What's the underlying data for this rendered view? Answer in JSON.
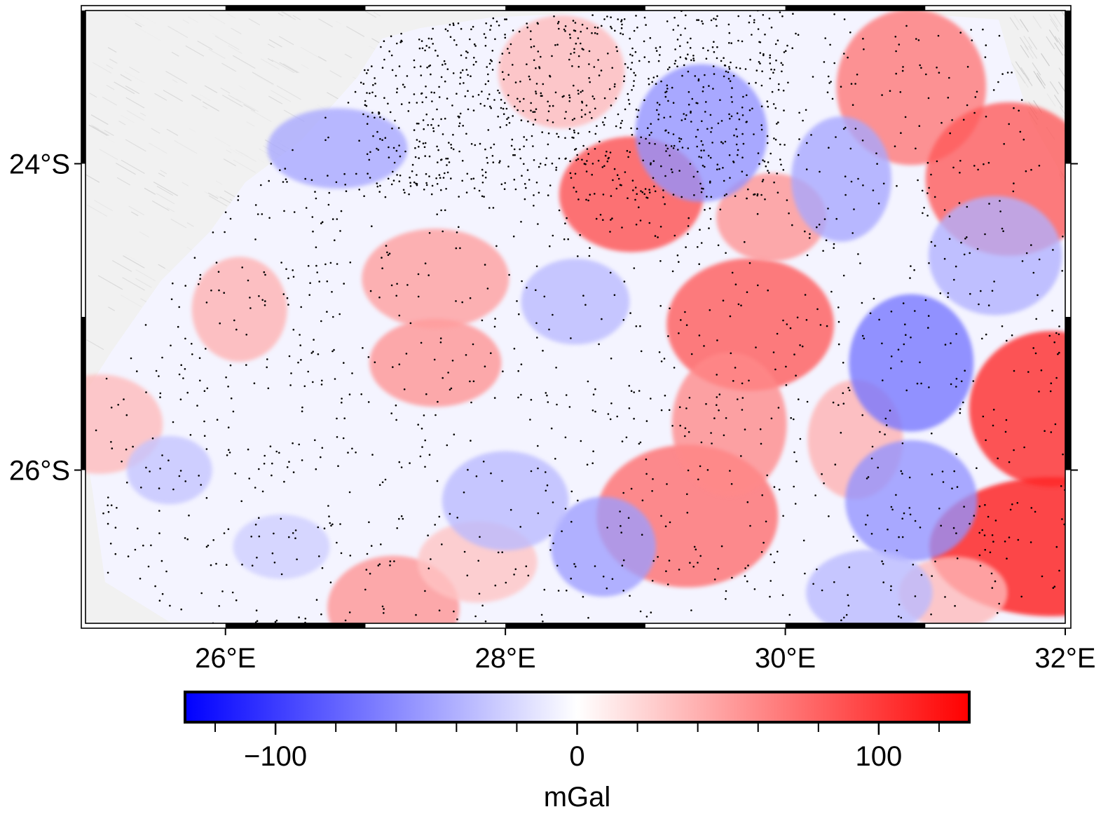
{
  "map": {
    "lon_range": [
      25,
      32
    ],
    "lat_range": [
      -27.0,
      -23.0
    ],
    "x_ticks": [
      {
        "value": 26,
        "label": "26°E"
      },
      {
        "value": 28,
        "label": "28°E"
      },
      {
        "value": 30,
        "label": "30°E"
      },
      {
        "value": 32,
        "label": "32°E"
      }
    ],
    "y_ticks": [
      {
        "value": -24,
        "label": "24°S"
      },
      {
        "value": -26,
        "label": "26°S"
      }
    ],
    "frame_style": "fancy",
    "frame_interval_deg": 1,
    "background": "shaded-relief-gray",
    "data_layer": "gravity-anomaly-grid",
    "station_marker": "black-dots"
  },
  "colorbar": {
    "cmap": "polar",
    "range": [
      -130,
      130
    ],
    "color_low": "#0000ff",
    "color_mid": "#ffffff",
    "color_high": "#ff0000",
    "major_ticks": [
      {
        "value": -100,
        "label": "−100"
      },
      {
        "value": 0,
        "label": "0"
      },
      {
        "value": 100,
        "label": "100"
      }
    ],
    "minor_interval": 20,
    "label": "mGal"
  },
  "chart_data": {
    "type": "heatmap",
    "title": "",
    "xlabel": "",
    "ylabel": "",
    "xlim": [
      25,
      32
    ],
    "ylim": [
      -27.0,
      -23.0
    ],
    "zlim": [
      -130,
      130
    ],
    "zlabel": "mGal",
    "anomalies": [
      {
        "lon": 28.9,
        "lat": -24.2,
        "value": 90
      },
      {
        "lon": 29.75,
        "lat": -25.05,
        "value": 85
      },
      {
        "lon": 29.3,
        "lat": -26.3,
        "value": 75
      },
      {
        "lon": 29.6,
        "lat": -25.7,
        "value": 60
      },
      {
        "lon": 27.5,
        "lat": -25.3,
        "value": 55
      },
      {
        "lon": 27.5,
        "lat": -24.75,
        "value": 50
      },
      {
        "lon": 26.1,
        "lat": -24.95,
        "value": 40
      },
      {
        "lon": 30.9,
        "lat": -23.5,
        "value": 70
      },
      {
        "lon": 31.9,
        "lat": -26.5,
        "value": 120
      },
      {
        "lon": 31.9,
        "lat": -25.6,
        "value": 110
      },
      {
        "lon": 31.6,
        "lat": -24.1,
        "value": 85
      },
      {
        "lon": 28.4,
        "lat": -23.4,
        "value": 35
      },
      {
        "lon": 29.9,
        "lat": -24.35,
        "value": 55
      },
      {
        "lon": 27.2,
        "lat": -26.9,
        "value": 55
      },
      {
        "lon": 25.1,
        "lat": -25.7,
        "value": 35
      },
      {
        "lon": 30.5,
        "lat": -25.8,
        "value": 40
      },
      {
        "lon": 31.2,
        "lat": -26.8,
        "value": 35
      },
      {
        "lon": 27.8,
        "lat": -26.6,
        "value": 30
      },
      {
        "lon": 30.9,
        "lat": -25.3,
        "value": -70
      },
      {
        "lon": 29.4,
        "lat": -23.8,
        "value": -55
      },
      {
        "lon": 26.8,
        "lat": -23.9,
        "value": -45
      },
      {
        "lon": 28.7,
        "lat": -26.5,
        "value": -50
      },
      {
        "lon": 30.9,
        "lat": -26.2,
        "value": -55
      },
      {
        "lon": 31.5,
        "lat": -24.6,
        "value": -40
      },
      {
        "lon": 25.6,
        "lat": -26.0,
        "value": -30
      },
      {
        "lon": 28.5,
        "lat": -24.9,
        "value": -35
      },
      {
        "lon": 28.0,
        "lat": -26.2,
        "value": -35
      },
      {
        "lon": 30.4,
        "lat": -24.1,
        "value": -45
      },
      {
        "lon": 26.4,
        "lat": -26.5,
        "value": -25
      },
      {
        "lon": 30.6,
        "lat": -26.8,
        "value": -35
      }
    ]
  }
}
